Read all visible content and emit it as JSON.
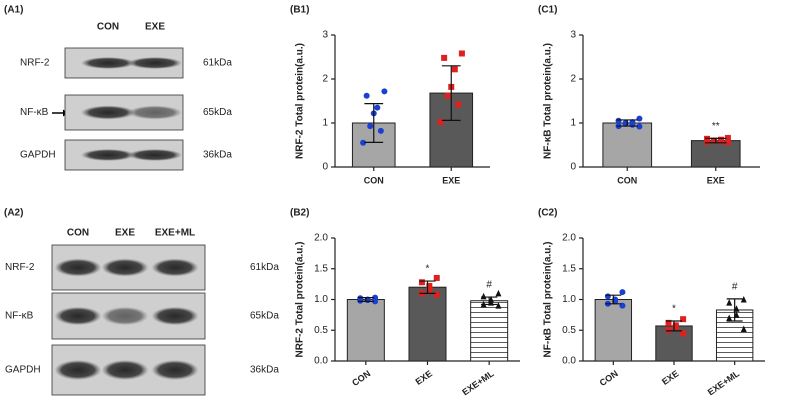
{
  "blots": [
    {
      "panel": "(A1)",
      "lanes": [
        "CON",
        "EXE"
      ],
      "rows": [
        {
          "name": "NRF-2",
          "size": "61kDa"
        },
        {
          "name": "NF-κB",
          "size": "65kDa"
        },
        {
          "name": "GAPDH",
          "size": "36kDa"
        }
      ]
    },
    {
      "panel": "(A2)",
      "lanes": [
        "CON",
        "EXE",
        "EXE+ML"
      ],
      "rows": [
        {
          "name": "NRF-2",
          "size": "61kDa"
        },
        {
          "name": "NF-κB",
          "size": "65kDa"
        },
        {
          "name": "GAPDH",
          "size": "36kDa"
        }
      ]
    }
  ],
  "chart_data": [
    {
      "type": "bar",
      "panel": "(B1)",
      "y_label": "NRF-2 Total protein(a.u.)",
      "categories": [
        "CON",
        "EXE"
      ],
      "values": [
        1.0,
        1.68
      ],
      "errors": [
        0.44,
        0.62
      ],
      "colors": [
        "#a6a6a6",
        "#595959"
      ],
      "hatch": [
        false,
        false
      ],
      "points": [
        [
          1.72,
          1.62,
          1.35,
          1.22,
          0.93,
          0.82,
          0.55
        ],
        [
          2.58,
          2.48,
          2.22,
          1.82,
          1.62,
          1.42,
          1.02
        ]
      ],
      "point_colors": [
        "#1a3fd1",
        "#e0201f"
      ],
      "point_markers": [
        "circle",
        "square"
      ],
      "ylim": [
        0,
        3
      ],
      "yticks": [
        0,
        1,
        2,
        3
      ]
    },
    {
      "type": "bar",
      "panel": "(C1)",
      "y_label": "NF-κB Total protein(a.u.)",
      "categories": [
        "CON",
        "EXE"
      ],
      "values": [
        1.0,
        0.6
      ],
      "errors": [
        0.07,
        0.05
      ],
      "colors": [
        "#a6a6a6",
        "#595959"
      ],
      "hatch": [
        false,
        false
      ],
      "points": [
        [
          1.1,
          1.05,
          1.02,
          1.0,
          0.98,
          0.96,
          0.93,
          0.92
        ],
        [
          0.66,
          0.64,
          0.62,
          0.6,
          0.6,
          0.58,
          0.57,
          0.56
        ]
      ],
      "point_colors": [
        "#1a3fd1",
        "#e0201f"
      ],
      "point_markers": [
        "circle",
        "square"
      ],
      "annotations": [
        null,
        "**"
      ],
      "ylim": [
        0,
        3
      ],
      "yticks": [
        0,
        1,
        2,
        3
      ]
    },
    {
      "type": "bar",
      "panel": "(B2)",
      "y_label": "NRF-2 Total protein(a.u.)",
      "categories": [
        "CON",
        "EXE",
        "EXE+ML"
      ],
      "values": [
        1.0,
        1.2,
        0.98
      ],
      "errors": [
        0.03,
        0.1,
        0.06
      ],
      "colors": [
        "#a6a6a6",
        "#595959",
        "#ffffff"
      ],
      "hatch": [
        false,
        false,
        true
      ],
      "points": [
        [
          1.03,
          1.02,
          1.0,
          0.99,
          0.98,
          0.97
        ],
        [
          1.35,
          1.28,
          1.22,
          1.15,
          1.1,
          1.08
        ],
        [
          1.1,
          1.05,
          1.0,
          0.95,
          0.92,
          0.9
        ]
      ],
      "point_colors": [
        "#1a3fd1",
        "#e0201f",
        "#111111"
      ],
      "point_markers": [
        "circle",
        "square",
        "triangle"
      ],
      "annotations": [
        null,
        "*",
        "#"
      ],
      "ylim": [
        0,
        2
      ],
      "yticks": [
        {
          "value": 0,
          "label": "0.0"
        },
        {
          "value": 0.5,
          "label": "0.5"
        },
        {
          "value": 1,
          "label": "1.0"
        },
        {
          "value": 1.5,
          "label": "1.5"
        },
        {
          "value": 2,
          "label": "2.0"
        }
      ]
    },
    {
      "type": "bar",
      "panel": "(C2)",
      "y_label": "NF-κB Total protein(a.u.)",
      "categories": [
        "CON",
        "EXE",
        "EXE+ML"
      ],
      "values": [
        1.0,
        0.57,
        0.83
      ],
      "errors": [
        0.07,
        0.08,
        0.18
      ],
      "colors": [
        "#a6a6a6",
        "#595959",
        "#ffffff"
      ],
      "hatch": [
        false,
        false,
        true
      ],
      "points": [
        [
          1.12,
          1.05,
          1.0,
          0.97,
          0.93,
          0.9
        ],
        [
          0.68,
          0.62,
          0.58,
          0.55,
          0.5,
          0.45
        ],
        [
          1.0,
          0.95,
          0.85,
          0.75,
          0.7,
          0.52
        ]
      ],
      "point_colors": [
        "#1a3fd1",
        "#e0201f",
        "#111111"
      ],
      "point_markers": [
        "circle",
        "square",
        "triangle"
      ],
      "annotations": [
        null,
        "*",
        "#"
      ],
      "ylim": [
        0,
        2
      ],
      "yticks": [
        {
          "value": 0,
          "label": "0.0"
        },
        {
          "value": 0.5,
          "label": "0.5"
        },
        {
          "value": 1,
          "label": "1.0"
        },
        {
          "value": 1.5,
          "label": "1.5"
        },
        {
          "value": 2,
          "label": "2.0"
        }
      ]
    }
  ]
}
